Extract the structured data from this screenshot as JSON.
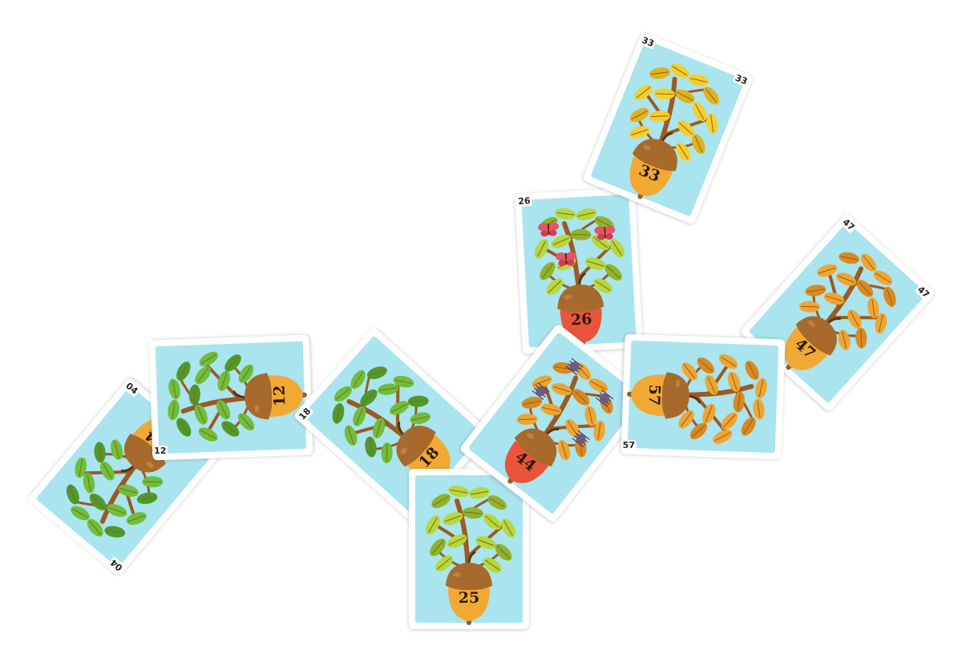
{
  "board": {
    "cards": [
      {
        "id": "card-04",
        "number": "04",
        "foliage": "green",
        "acorn_color": "#f2a934",
        "corner_top": "04",
        "corner_bottom": "04",
        "bugs": "none"
      },
      {
        "id": "card-12",
        "number": "12",
        "foliage": "green",
        "acorn_color": "#f2a934",
        "corner_top": "12",
        "corner_bottom": "",
        "bugs": "none"
      },
      {
        "id": "card-18",
        "number": "18",
        "foliage": "green",
        "acorn_color": "#f2a934",
        "corner_top": "18",
        "corner_bottom": "",
        "bugs": "none"
      },
      {
        "id": "card-25",
        "number": "25",
        "foliage": "lime",
        "acorn_color": "#f2a934",
        "corner_top": "",
        "corner_bottom": "",
        "bugs": "none"
      },
      {
        "id": "card-26",
        "number": "26",
        "foliage": "lime",
        "acorn_color": "#e8553a",
        "corner_top": "26",
        "corner_bottom": "",
        "bugs": "butterfly"
      },
      {
        "id": "card-33",
        "number": "33",
        "foliage": "yellow",
        "acorn_color": "#f2a934",
        "corner_top": "33",
        "corner_bottom": "33",
        "bugs": "none"
      },
      {
        "id": "card-44",
        "number": "44",
        "foliage": "orange",
        "acorn_color": "#e8553a",
        "corner_top": "",
        "corner_bottom": "",
        "bugs": "spider"
      },
      {
        "id": "card-47",
        "number": "47",
        "foliage": "orange",
        "acorn_color": "#f2a934",
        "corner_top": "47",
        "corner_bottom": "47",
        "bugs": "none"
      },
      {
        "id": "card-57",
        "number": "57",
        "foliage": "orange",
        "acorn_color": "#f2a934",
        "corner_top": "",
        "corner_bottom": "57",
        "bugs": "none"
      }
    ]
  },
  "palette": {
    "sky": "#a9e4ef",
    "trunk": "#9b5a22",
    "green": "#6cc03a",
    "lime": "#b4d93a",
    "yellow": "#f4cf2c",
    "orange": "#eea631",
    "acorn_cap": "#a8692c",
    "acorn_body": "#f2a934",
    "acorn_body_red": "#e8553a"
  }
}
